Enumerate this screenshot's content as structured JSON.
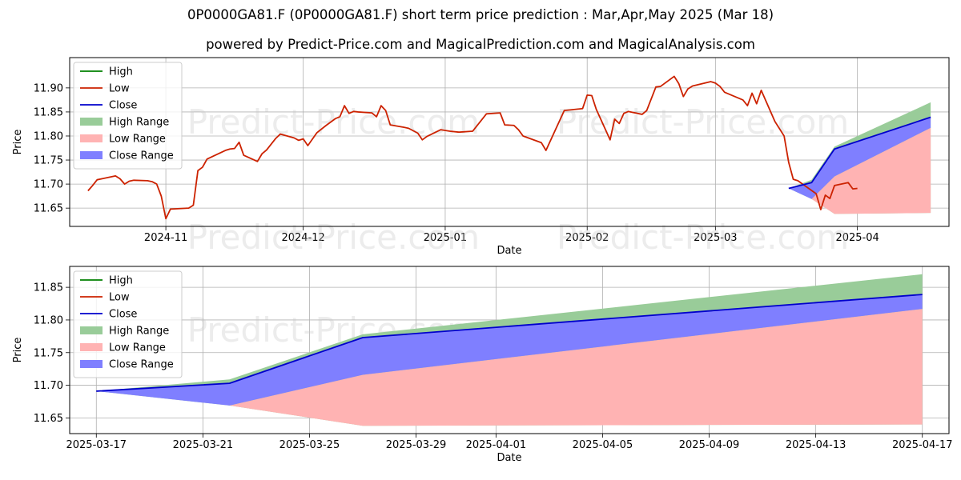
{
  "title": "0P0000GA81.F (0P0000GA81.F) short term price prediction : Mar,Apr,May 2025 (Mar 18)",
  "subtitle": "powered by Predict-Price.com and MagicalPrediction.com and MagicalAnalysis.com",
  "watermark": "Predict-Price.com",
  "colors": {
    "high": "#008000",
    "low": "#cc2200",
    "close": "#0000cc",
    "high_range": "#99cc99",
    "low_range": "#ffb3b3",
    "close_range": "#7f7fff"
  },
  "chart_data": [
    {
      "type": "line",
      "xlabel": "Date",
      "ylabel": "Price",
      "xlim": [
        "2024-10-11",
        "2025-04-21"
      ],
      "ylim": [
        11.612,
        11.963
      ],
      "x_ticks": [
        "2024-11",
        "2024-12",
        "2025-01",
        "2025-02",
        "2025-03",
        "2025-04"
      ],
      "y_ticks": [
        "11.65",
        "11.70",
        "11.75",
        "11.80",
        "11.85",
        "11.90"
      ],
      "grid": true,
      "legend": "top-left",
      "legend_items": [
        "High",
        "Low",
        "Close",
        "High Range",
        "Low Range",
        "Close Range"
      ],
      "series": [
        {
          "name": "Low",
          "values": [
            [
              "2024-10-15",
              11.686
            ],
            [
              "2024-10-16",
              11.697
            ],
            [
              "2024-10-17",
              11.709
            ],
            [
              "2024-10-18",
              11.711
            ],
            [
              "2024-10-21",
              11.717
            ],
            [
              "2024-10-22",
              11.711
            ],
            [
              "2024-10-23",
              11.7
            ],
            [
              "2024-10-24",
              11.706
            ],
            [
              "2024-10-25",
              11.708
            ],
            [
              "2024-10-28",
              11.707
            ],
            [
              "2024-10-29",
              11.705
            ],
            [
              "2024-10-30",
              11.7
            ],
            [
              "2024-10-31",
              11.675
            ],
            [
              "2024-11-01",
              11.628
            ],
            [
              "2024-11-02",
              11.648
            ],
            [
              "2024-11-06",
              11.65
            ],
            [
              "2024-11-07",
              11.656
            ],
            [
              "2024-11-08",
              11.728
            ],
            [
              "2024-11-09",
              11.735
            ],
            [
              "2024-11-10",
              11.752
            ],
            [
              "2024-11-14",
              11.77
            ],
            [
              "2024-11-15",
              11.773
            ],
            [
              "2024-11-16",
              11.774
            ],
            [
              "2024-11-17",
              11.787
            ],
            [
              "2024-11-18",
              11.76
            ],
            [
              "2024-11-21",
              11.747
            ],
            [
              "2024-11-22",
              11.763
            ],
            [
              "2024-11-23",
              11.771
            ],
            [
              "2024-11-25",
              11.795
            ],
            [
              "2024-11-26",
              11.804
            ],
            [
              "2024-11-29",
              11.796
            ],
            [
              "2024-11-30",
              11.791
            ],
            [
              "2024-12-01",
              11.794
            ],
            [
              "2024-12-02",
              11.78
            ],
            [
              "2024-12-04",
              11.807
            ],
            [
              "2024-12-06",
              11.822
            ],
            [
              "2024-12-08",
              11.836
            ],
            [
              "2024-12-09",
              11.84
            ],
            [
              "2024-12-10",
              11.863
            ],
            [
              "2024-12-11",
              11.847
            ],
            [
              "2024-12-12",
              11.851
            ],
            [
              "2024-12-13",
              11.85
            ],
            [
              "2024-12-16",
              11.848
            ],
            [
              "2024-12-17",
              11.84
            ],
            [
              "2024-12-18",
              11.863
            ],
            [
              "2024-12-19",
              11.853
            ],
            [
              "2024-12-20",
              11.823
            ],
            [
              "2024-12-23",
              11.818
            ],
            [
              "2024-12-24",
              11.816
            ],
            [
              "2024-12-26",
              11.806
            ],
            [
              "2024-12-27",
              11.792
            ],
            [
              "2024-12-28",
              11.799
            ],
            [
              "2024-12-31",
              11.813
            ],
            [
              "2025-01-02",
              11.81
            ],
            [
              "2025-01-04",
              11.808
            ],
            [
              "2025-01-07",
              11.81
            ],
            [
              "2025-01-10",
              11.846
            ],
            [
              "2025-01-13",
              11.848
            ],
            [
              "2025-01-14",
              11.823
            ],
            [
              "2025-01-16",
              11.822
            ],
            [
              "2025-01-17",
              11.813
            ],
            [
              "2025-01-18",
              11.8
            ],
            [
              "2025-01-22",
              11.786
            ],
            [
              "2025-01-23",
              11.77
            ],
            [
              "2025-01-27",
              11.853
            ],
            [
              "2025-01-31",
              11.857
            ],
            [
              "2025-02-01",
              11.885
            ],
            [
              "2025-02-02",
              11.884
            ],
            [
              "2025-02-03",
              11.855
            ],
            [
              "2025-02-06",
              11.792
            ],
            [
              "2025-02-07",
              11.835
            ],
            [
              "2025-02-08",
              11.826
            ],
            [
              "2025-02-09",
              11.847
            ],
            [
              "2025-02-10",
              11.851
            ],
            [
              "2025-02-13",
              11.845
            ],
            [
              "2025-02-14",
              11.853
            ],
            [
              "2025-02-16",
              11.902
            ],
            [
              "2025-02-17",
              11.903
            ],
            [
              "2025-02-20",
              11.924
            ],
            [
              "2025-02-21",
              11.909
            ],
            [
              "2025-02-22",
              11.882
            ],
            [
              "2025-02-23",
              11.898
            ],
            [
              "2025-02-24",
              11.904
            ],
            [
              "2025-02-28",
              11.913
            ],
            [
              "2025-03-01",
              11.91
            ],
            [
              "2025-03-02",
              11.903
            ],
            [
              "2025-03-03",
              11.891
            ],
            [
              "2025-03-07",
              11.875
            ],
            [
              "2025-03-08",
              11.863
            ],
            [
              "2025-03-09",
              11.889
            ],
            [
              "2025-03-10",
              11.867
            ],
            [
              "2025-03-11",
              11.895
            ],
            [
              "2025-03-14",
              11.83
            ],
            [
              "2025-03-16",
              11.8
            ],
            [
              "2025-03-17",
              11.745
            ],
            [
              "2025-03-18",
              11.71
            ],
            [
              "2025-03-19",
              11.707
            ],
            [
              "2025-03-23",
              11.68
            ],
            [
              "2025-03-24",
              11.647
            ],
            [
              "2025-03-25",
              11.677
            ],
            [
              "2025-03-26",
              11.67
            ],
            [
              "2025-03-27",
              11.697
            ],
            [
              "2025-03-30",
              11.703
            ],
            [
              "2025-03-31",
              11.69
            ],
            [
              "2025-04-01",
              11.691
            ]
          ]
        },
        {
          "name": "Close",
          "values": [
            [
              "2025-03-17",
              11.691
            ],
            [
              "2025-03-22",
              11.703
            ],
            [
              "2025-03-27",
              11.773
            ],
            [
              "2025-04-17",
              11.839
            ]
          ]
        },
        {
          "name": "High Range",
          "values": [
            [
              "2025-03-17",
              11.691,
              11.691
            ],
            [
              "2025-03-22",
              11.709,
              11.669
            ],
            [
              "2025-03-27",
              11.778,
              11.638
            ],
            [
              "2025-04-17",
              11.87,
              11.64
            ]
          ]
        },
        {
          "name": "Low Range",
          "values": [
            [
              "2025-03-17",
              11.691,
              11.691
            ],
            [
              "2025-03-22",
              11.669,
              11.669
            ],
            [
              "2025-03-27",
              11.716,
              11.638
            ],
            [
              "2025-04-17",
              11.817,
              11.64
            ]
          ]
        },
        {
          "name": "Close Range",
          "values": [
            [
              "2025-03-17",
              11.691,
              11.691
            ],
            [
              "2025-03-22",
              11.703,
              11.669
            ],
            [
              "2025-03-27",
              11.773,
              11.716
            ],
            [
              "2025-04-17",
              11.839,
              11.817
            ]
          ]
        }
      ]
    },
    {
      "type": "line",
      "xlabel": "Date",
      "ylabel": "Price",
      "xlim": [
        "2025-03-16",
        "2025-04-18"
      ],
      "ylim": [
        11.626,
        11.882
      ],
      "x_ticks": [
        "2025-03-17",
        "2025-03-21",
        "2025-03-25",
        "2025-03-29",
        "2025-04-01",
        "2025-04-05",
        "2025-04-09",
        "2025-04-13",
        "2025-04-17"
      ],
      "y_ticks": [
        "11.65",
        "11.70",
        "11.75",
        "11.80",
        "11.85"
      ],
      "grid": true,
      "legend": "top-left",
      "legend_items": [
        "High",
        "Low",
        "Close",
        "High Range",
        "Low Range",
        "Close Range"
      ],
      "series": [
        {
          "name": "Close",
          "values": [
            [
              "2025-03-17",
              11.691
            ],
            [
              "2025-03-22",
              11.703
            ],
            [
              "2025-03-27",
              11.773
            ],
            [
              "2025-04-17",
              11.839
            ]
          ]
        },
        {
          "name": "High Range",
          "values": [
            [
              "2025-03-17",
              11.691,
              11.691
            ],
            [
              "2025-03-22",
              11.709,
              11.669
            ],
            [
              "2025-03-27",
              11.778,
              11.638
            ],
            [
              "2025-04-17",
              11.87,
              11.64
            ]
          ]
        },
        {
          "name": "Low Range",
          "values": [
            [
              "2025-03-17",
              11.691,
              11.691
            ],
            [
              "2025-03-22",
              11.669,
              11.669
            ],
            [
              "2025-03-27",
              11.716,
              11.638
            ],
            [
              "2025-04-17",
              11.817,
              11.64
            ]
          ]
        },
        {
          "name": "Close Range",
          "values": [
            [
              "2025-03-17",
              11.691,
              11.691
            ],
            [
              "2025-03-22",
              11.703,
              11.669
            ],
            [
              "2025-03-27",
              11.773,
              11.716
            ],
            [
              "2025-04-17",
              11.839,
              11.817
            ]
          ]
        }
      ]
    }
  ]
}
